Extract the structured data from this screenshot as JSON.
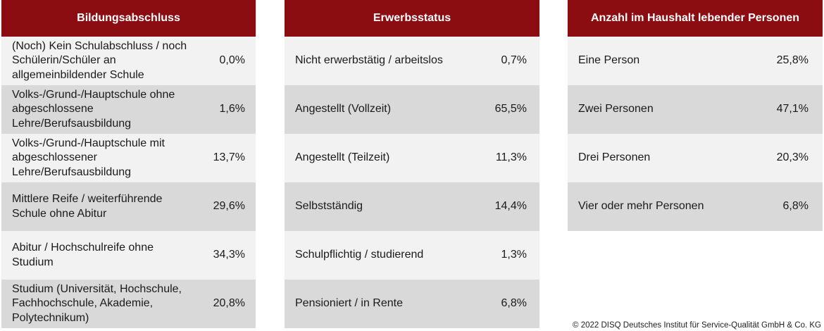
{
  "tables": [
    {
      "header": "Bildungsabschluss",
      "rows": [
        {
          "label": "(Noch) Kein Schulabschluss / noch Schülerin/Schüler an allgemeinbildender Schule",
          "value": "0,0%"
        },
        {
          "label": "Volks-/Grund-/Hauptschule ohne abgeschlossene Lehre/Berufsausbildung",
          "value": "1,6%"
        },
        {
          "label": "Volks-/Grund-/Hauptschule mit abgeschlossener Lehre/Berufsausbildung",
          "value": "13,7%"
        },
        {
          "label": "Mittlere Reife / weiterführende Schule ohne Abitur",
          "value": "29,6%"
        },
        {
          "label": "Abitur / Hochschulreife ohne Studium",
          "value": "34,3%"
        },
        {
          "label": "Studium (Universität, Hochschule, Fachhochschule, Akademie, Polytechnikum)",
          "value": "20,8%"
        }
      ]
    },
    {
      "header": "Erwerbsstatus",
      "rows": [
        {
          "label": "Nicht erwerbstätig / arbeitslos",
          "value": "0,7%"
        },
        {
          "label": "Angestellt (Vollzeit)",
          "value": "65,5%"
        },
        {
          "label": "Angestellt (Teilzeit)",
          "value": "11,3%"
        },
        {
          "label": "Selbstständig",
          "value": "14,4%"
        },
        {
          "label": "Schulpflichtig / studierend",
          "value": "1,3%"
        },
        {
          "label": "Pensioniert / in Rente",
          "value": "6,8%"
        }
      ]
    },
    {
      "header": "Anzahl im Haushalt lebender Personen",
      "rows": [
        {
          "label": "Eine Person",
          "value": "25,8%"
        },
        {
          "label": "Zwei Personen",
          "value": "47,1%"
        },
        {
          "label": "Drei Personen",
          "value": "20,3%"
        },
        {
          "label": "Vier oder mehr Personen",
          "value": "6,8%"
        }
      ]
    }
  ],
  "colors": {
    "header_bg": "#8b0c11",
    "row_light": "#f2f2f2",
    "row_dark": "#d9d9d9"
  },
  "copyright": "© 2022 DISQ Deutsches Institut für Service-Qualität GmbH & Co. KG"
}
